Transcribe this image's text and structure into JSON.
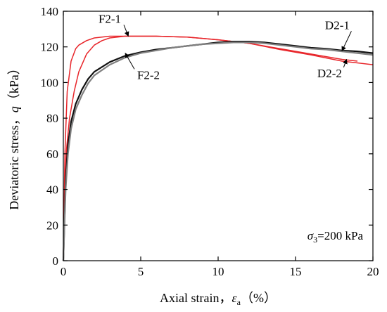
{
  "chart_data": {
    "type": "line",
    "title": "",
    "xlabel": {
      "prefix": "Axial strain，",
      "symbol": "ε",
      "subscript": "a",
      "suffix": "（%）"
    },
    "ylabel": {
      "prefix": "Deviatoric stress，",
      "symbol": "q",
      "suffix": "（kPa）"
    },
    "xlim": [
      0,
      20
    ],
    "ylim": [
      0,
      140
    ],
    "xticks": [
      0,
      5,
      10,
      15,
      20
    ],
    "yticks": [
      0,
      20,
      40,
      60,
      80,
      100,
      120,
      140
    ],
    "grid": false,
    "condition_label": {
      "symbol": "σ",
      "subscript": "3",
      "text": "=200 kPa"
    },
    "colors": {
      "numerical": "#e8262b",
      "experimental_1": "#111111",
      "experimental_2": "#808080"
    },
    "series": [
      {
        "name": "F2-1",
        "color": "#e8262b",
        "x": [
          0,
          0.1,
          0.25,
          0.5,
          0.8,
          1.0,
          1.5,
          2,
          3,
          4,
          6,
          8,
          10,
          12,
          14,
          16,
          18,
          19
        ],
        "y": [
          0,
          60,
          95,
          112,
          119,
          121,
          123.5,
          125,
          126,
          126,
          126,
          125.5,
          124,
          122,
          119,
          116,
          113,
          112
        ]
      },
      {
        "name": "F2-2",
        "color": "#e8262b",
        "x": [
          0,
          0.1,
          0.2,
          0.4,
          0.7,
          1.0,
          1.5,
          2,
          2.5,
          3,
          4,
          5,
          6,
          8,
          10,
          12,
          14,
          16,
          18,
          20
        ],
        "y": [
          0,
          40,
          62,
          80,
          95,
          106,
          116,
          121,
          123.5,
          125,
          126,
          126,
          126,
          125.5,
          124,
          122,
          118.5,
          115.5,
          112,
          110
        ]
      },
      {
        "name": "D2-1",
        "color": "#111111",
        "x": [
          0,
          0.15,
          0.3,
          0.5,
          0.8,
          1.2,
          1.6,
          2,
          3,
          4,
          5,
          6,
          7,
          8,
          9,
          10,
          11,
          12,
          13,
          14,
          15,
          16,
          17,
          18,
          19,
          20
        ],
        "y": [
          0,
          45,
          65,
          78,
          88,
          96,
          102,
          106,
          111.5,
          115,
          117,
          118.5,
          119.5,
          120.5,
          121.5,
          122.5,
          123,
          123,
          122.5,
          121.5,
          120.5,
          119.5,
          119,
          118,
          117.5,
          116.5
        ]
      },
      {
        "name": "D2-2",
        "color": "#808080",
        "x": [
          0,
          0.15,
          0.3,
          0.5,
          0.8,
          1.2,
          1.6,
          2,
          3,
          4,
          5,
          6,
          7,
          8,
          9,
          10,
          11,
          12,
          13,
          14,
          15,
          16,
          17,
          18,
          19,
          20
        ],
        "y": [
          0,
          40,
          60,
          74,
          85,
          93,
          99.5,
          104,
          110,
          114,
          116.5,
          118,
          119.5,
          120.5,
          121.5,
          122,
          122.5,
          122.5,
          122,
          121,
          120,
          119,
          118.5,
          117.5,
          116.5,
          115.5
        ]
      }
    ],
    "annotations": [
      {
        "label": "F2-1",
        "text_at": [
          3.0,
          133.5
        ],
        "arrow_to": [
          4.2,
          126
        ]
      },
      {
        "label": "F2-2",
        "text_at": [
          5.5,
          102
        ],
        "arrow_to": [
          4.0,
          116.5
        ]
      },
      {
        "label": "D2-1",
        "text_at": [
          17.7,
          130
        ],
        "arrow_to": [
          18.0,
          117.7
        ]
      },
      {
        "label": "D2-2",
        "text_at": [
          17.2,
          103
        ],
        "arrow_to": [
          18.3,
          113
        ]
      }
    ]
  }
}
